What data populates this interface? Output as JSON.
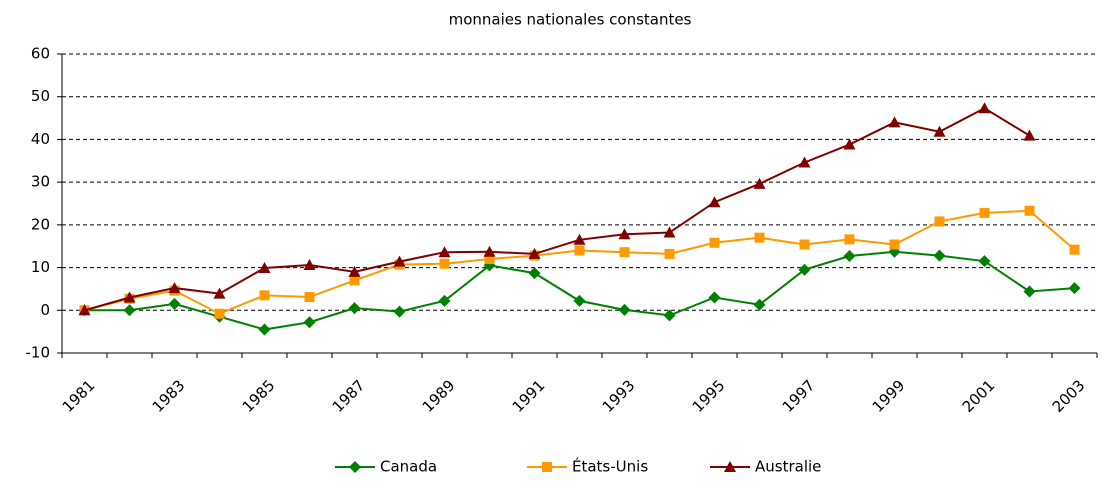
{
  "chart_data": {
    "type": "line",
    "title": "monnaies nationales constantes",
    "categories": [
      "1981",
      null,
      "1983",
      null,
      "1985",
      null,
      "1987",
      null,
      "1989",
      null,
      "1991",
      null,
      "1993",
      null,
      "1995",
      null,
      "1997",
      null,
      "1999",
      null,
      "2001",
      null,
      "2003"
    ],
    "series": [
      {
        "name": "Canada",
        "color": "#008000",
        "marker": "diamond",
        "values": [
          0,
          0,
          1.5,
          -1.5,
          -4.5,
          -2.8,
          0.5,
          -0.3,
          2.2,
          10.5,
          8.7,
          2.2,
          0.1,
          -1.2,
          3,
          1.3,
          9.5,
          12.7,
          13.7,
          12.8,
          11.5,
          4.4,
          5.2
        ]
      },
      {
        "name": "États-Unis",
        "color": "#ff9900",
        "marker": "square",
        "values": [
          0,
          2.7,
          4.6,
          -0.8,
          3.5,
          3.1,
          7,
          10.7,
          10.9,
          12,
          12.8,
          14,
          13.6,
          13.2,
          15.8,
          17,
          15.4,
          16.6,
          15.4,
          20.8,
          22.8,
          23.3,
          14.2
        ]
      },
      {
        "name": "Australie",
        "color": "#800000",
        "marker": "triangle",
        "values": [
          0,
          3,
          5.2,
          3.9,
          9.9,
          10.6,
          9,
          11.4,
          13.6,
          13.7,
          13.2,
          16.5,
          17.8,
          18.2,
          25.3,
          29.6,
          34.6,
          38.8,
          44,
          41.8,
          47.3,
          40.9,
          null
        ]
      }
    ],
    "ylim": [
      -10,
      60
    ],
    "yticks": [
      -10,
      0,
      10,
      20,
      30,
      40,
      50,
      60
    ],
    "grid": true,
    "legend": "bottom"
  }
}
